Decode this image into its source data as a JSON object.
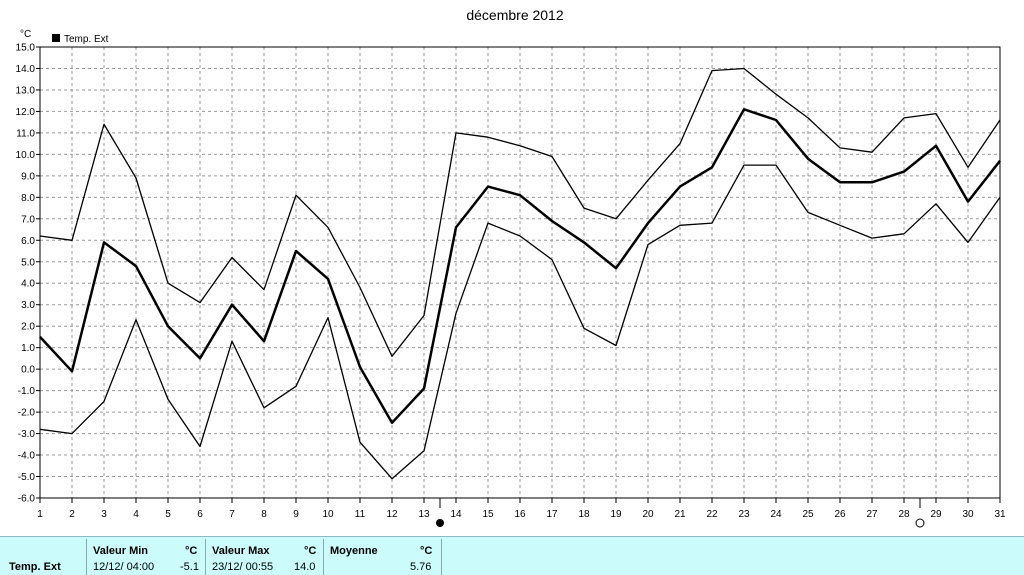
{
  "chart_data": {
    "type": "line",
    "title": "décembre 2012",
    "unit_label": "°C",
    "legend": [
      "Temp. Ext"
    ],
    "legend_placement": "top-left",
    "grid": true,
    "ylim": [
      -6.0,
      15.0
    ],
    "yticks": [
      "15.0",
      "14.0",
      "13.0",
      "12.0",
      "11.0",
      "10.0",
      "9.0",
      "8.0",
      "7.0",
      "6.0",
      "5.0",
      "4.0",
      "3.0",
      "2.0",
      "1.0",
      "0.0",
      "-1.0",
      "-2.0",
      "-3.0",
      "-4.0",
      "-5.0",
      "-6.0"
    ],
    "x": [
      1,
      2,
      3,
      4,
      5,
      6,
      7,
      8,
      9,
      10,
      11,
      12,
      13,
      14,
      15,
      16,
      17,
      18,
      19,
      20,
      21,
      22,
      23,
      24,
      25,
      26,
      27,
      28,
      29,
      30,
      31
    ],
    "series": [
      {
        "role": "max",
        "values": [
          6.2,
          6.0,
          11.4,
          8.9,
          4.0,
          3.1,
          5.2,
          3.7,
          8.1,
          6.6,
          3.8,
          0.6,
          2.5,
          11.0,
          10.8,
          10.4,
          9.9,
          7.5,
          7.0,
          8.8,
          10.5,
          13.9,
          14.0,
          12.8,
          11.7,
          10.3,
          10.1,
          11.7,
          11.9,
          9.4,
          11.6
        ]
      },
      {
        "role": "mean",
        "values": [
          1.5,
          -0.1,
          5.9,
          4.8,
          2.0,
          0.5,
          3.0,
          1.3,
          5.5,
          4.2,
          0.1,
          -2.5,
          -0.9,
          6.6,
          8.5,
          8.1,
          6.9,
          5.9,
          4.7,
          6.8,
          8.5,
          9.4,
          12.1,
          11.6,
          9.8,
          8.7,
          8.7,
          9.2,
          10.4,
          7.8,
          9.7
        ]
      },
      {
        "role": "min",
        "values": [
          -2.8,
          -3.0,
          -1.5,
          2.3,
          -1.4,
          -3.6,
          1.3,
          -1.8,
          -0.8,
          2.4,
          -3.4,
          -5.1,
          -3.8,
          2.6,
          6.8,
          6.2,
          5.1,
          1.9,
          1.1,
          5.8,
          6.7,
          6.8,
          9.5,
          9.5,
          7.3,
          6.7,
          6.1,
          6.3,
          7.7,
          5.9,
          8.0
        ]
      }
    ],
    "markers": [
      {
        "symbol": "filled-circle",
        "near_x": 13
      },
      {
        "symbol": "open-circle",
        "near_x": 28
      }
    ]
  },
  "footer": {
    "row_label": "Temp. Ext",
    "min": {
      "header": "Valeur Min",
      "unit": "°C",
      "when": "12/12/  04:00",
      "value": "-5.1"
    },
    "max": {
      "header": "Valeur Max",
      "unit": "°C",
      "when": "23/12/  00:55",
      "value": "14.0"
    },
    "avg": {
      "header": "Moyenne",
      "unit": "°C",
      "value": "5.76"
    }
  }
}
